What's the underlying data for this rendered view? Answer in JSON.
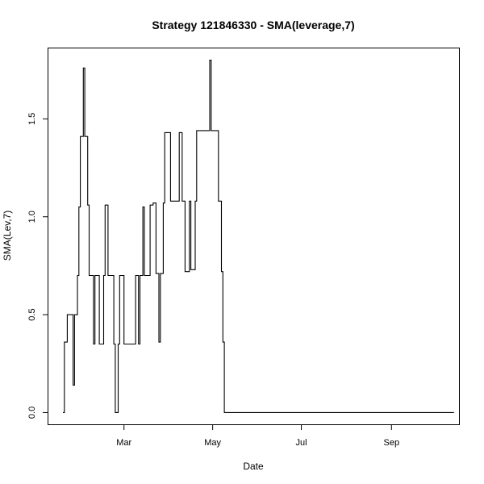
{
  "chart_data": {
    "type": "line",
    "step": true,
    "title": "Strategy 121846330 - SMA(leverage,7)",
    "xlabel": "Date",
    "ylabel": "SMA(Lev,7)",
    "x_type": "date",
    "xlim": [
      "2019-01-08",
      "2019-10-18"
    ],
    "ylim": [
      -0.06,
      1.86
    ],
    "x_ticks": [
      {
        "date": "2019-03-01",
        "label": "Mar"
      },
      {
        "date": "2019-05-01",
        "label": "May"
      },
      {
        "date": "2019-07-01",
        "label": "Jul"
      },
      {
        "date": "2019-09-01",
        "label": "Sep"
      }
    ],
    "y_ticks": [
      {
        "value": 0.0,
        "label": "0.0"
      },
      {
        "value": 0.5,
        "label": "0.5"
      },
      {
        "value": 1.0,
        "label": "1.0"
      },
      {
        "value": 1.5,
        "label": "1.5"
      }
    ],
    "grid": false,
    "legend": "none",
    "color": "#000000",
    "series": [
      {
        "x": [
          "2019-01-18",
          "2019-01-19",
          "2019-01-21",
          "2019-01-25",
          "2019-01-26",
          "2019-01-28",
          "2019-01-29",
          "2019-01-30",
          "2019-02-01",
          "2019-02-02",
          "2019-02-04",
          "2019-02-05",
          "2019-02-08",
          "2019-02-09",
          "2019-02-11",
          "2019-02-12",
          "2019-02-15",
          "2019-02-16",
          "2019-02-18",
          "2019-02-19",
          "2019-02-22",
          "2019-02-23",
          "2019-02-25",
          "2019-02-26",
          "2019-03-01",
          "2019-03-02",
          "2019-03-04",
          "2019-03-06",
          "2019-03-08",
          "2019-03-09",
          "2019-03-11",
          "2019-03-12",
          "2019-03-14",
          "2019-03-15",
          "2019-03-16",
          "2019-03-19",
          "2019-03-21",
          "2019-03-23",
          "2019-03-25",
          "2019-03-26",
          "2019-03-28",
          "2019-03-29",
          "2019-04-01",
          "2019-04-02",
          "2019-04-05",
          "2019-04-06",
          "2019-04-08",
          "2019-04-10",
          "2019-04-12",
          "2019-04-13",
          "2019-04-15",
          "2019-04-16",
          "2019-04-19",
          "2019-04-20",
          "2019-04-21",
          "2019-04-22",
          "2019-04-24",
          "2019-04-26",
          "2019-04-29",
          "2019-04-30",
          "2019-05-01",
          "2019-05-05",
          "2019-05-07",
          "2019-05-08",
          "2019-05-09",
          "2019-10-14"
        ],
        "y": [
          0.0,
          0.36,
          0.5,
          0.14,
          0.5,
          0.7,
          1.05,
          1.41,
          1.76,
          1.41,
          1.06,
          0.7,
          0.35,
          0.7,
          0.7,
          0.35,
          0.7,
          1.06,
          0.7,
          0.7,
          0.35,
          0.0,
          0.35,
          0.7,
          0.35,
          0.35,
          0.35,
          0.35,
          0.35,
          0.7,
          0.35,
          0.7,
          1.05,
          0.7,
          0.7,
          1.06,
          1.07,
          0.71,
          0.36,
          0.71,
          1.07,
          1.43,
          1.43,
          1.08,
          1.08,
          1.08,
          1.43,
          1.08,
          0.72,
          0.72,
          1.08,
          0.73,
          1.08,
          1.44,
          1.44,
          1.44,
          1.44,
          1.44,
          1.8,
          1.44,
          1.44,
          1.08,
          0.72,
          0.36,
          0.0,
          0.0
        ]
      }
    ]
  }
}
